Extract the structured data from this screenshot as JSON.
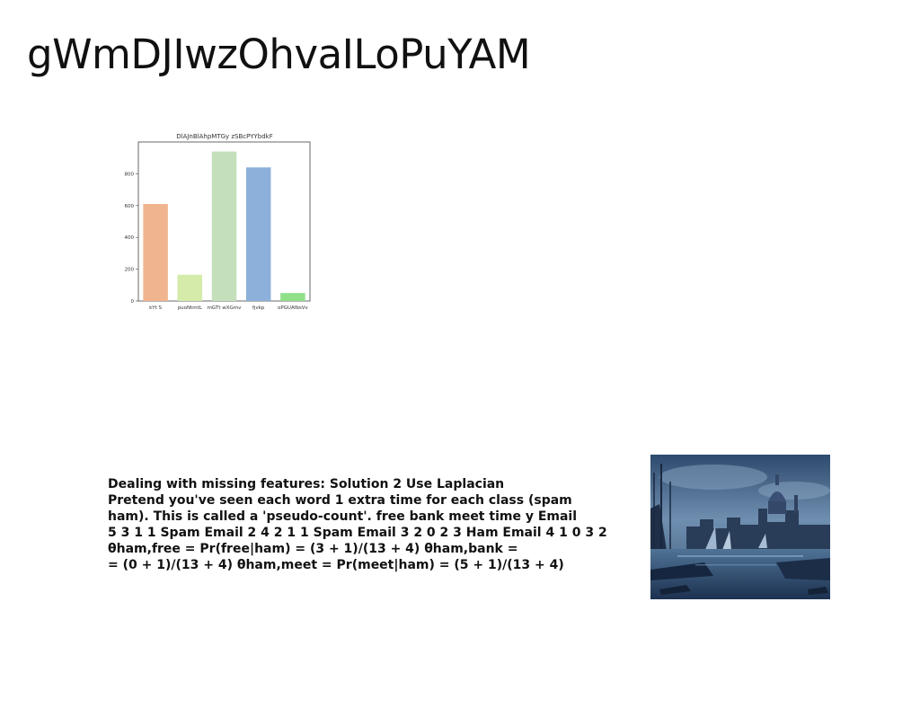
{
  "slide": {
    "title": "gWmDJIwzOhvaILoPuYAM",
    "body_lines": [
      "Dealing with missing features: Solution 2 Use Laplacian",
      "Pretend you've seen each word 1 extra time for each class (spam",
      "ham). This is called a 'pseudo-count'. free bank meet time y Email",
      "5 3 1 1 Spam Email 2 4 2 1 1 Spam Email 3 2 0 2 3 Ham Email 4 1 0 3 2",
      "θham,free = Pr(free|ham) = (3 + 1)/(13 + 4) θham,bank =",
      "= (0 + 1)/(13 + 4) θham,meet = Pr(meet|ham) = (5 + 1)/(13 + 4)"
    ]
  },
  "chart_data": {
    "type": "bar",
    "title": "DlAJnBlAhpMTGy zSBcPYYbdkF",
    "categories": [
      "kYt S",
      "puoNtmtL",
      "mGTt wXGmv",
      "fjvkp",
      "oPGUAfbsVv"
    ],
    "values": [
      610,
      165,
      940,
      840,
      50
    ],
    "colors": [
      "#f0b48e",
      "#d4ebaa",
      "#c3e0bb",
      "#8cb0da",
      "#90e08a"
    ],
    "yticks": [
      0,
      200,
      400,
      600,
      800
    ],
    "ylim": [
      0,
      1000
    ],
    "xlabel": "",
    "ylabel": "",
    "grid": false
  }
}
